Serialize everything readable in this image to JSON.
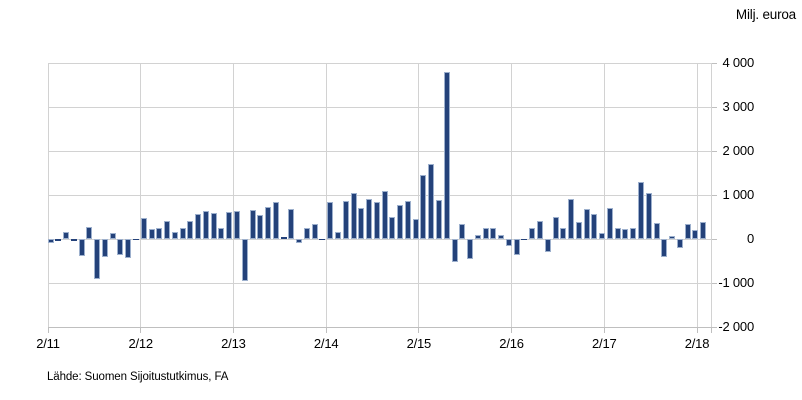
{
  "unit_label": "Milj. euroa",
  "source_note": "Lähde: Suomen Sijoitustutkimus, FA",
  "colors": {
    "bar_fill": "#24427a",
    "bar_edge": "#9db0cd",
    "gridline": "#d2d2d2",
    "axis": "#bfbfbf",
    "background": "#ffffff",
    "text": "#000000"
  },
  "chart_data": {
    "type": "bar",
    "title": "",
    "xlabel": "",
    "ylabel": "Milj. euroa",
    "ylim": [
      -2000,
      4000
    ],
    "grid": true,
    "legend": "none",
    "y_tick_labels": [
      "4 000",
      "3 000",
      "2 000",
      "1 000",
      "0",
      "-1 000",
      "-2 000"
    ],
    "y_tick_values": [
      4000,
      3000,
      2000,
      1000,
      0,
      -1000,
      -2000
    ],
    "x_tick_labels": [
      "2/11",
      "2/12",
      "2/13",
      "2/14",
      "2/15",
      "2/16",
      "2/17",
      "2/18"
    ],
    "categories": [
      "2011-02",
      "2011-03",
      "2011-04",
      "2011-05",
      "2011-06",
      "2011-07",
      "2011-08",
      "2011-09",
      "2011-10",
      "2011-11",
      "2011-12",
      "2012-01",
      "2012-02",
      "2012-03",
      "2012-04",
      "2012-05",
      "2012-06",
      "2012-07",
      "2012-08",
      "2012-09",
      "2012-10",
      "2012-11",
      "2012-12",
      "2013-01",
      "2013-02",
      "2013-03",
      "2013-04",
      "2013-05",
      "2013-06",
      "2013-07",
      "2013-08",
      "2013-09",
      "2013-10",
      "2013-11",
      "2013-12",
      "2014-01",
      "2014-02",
      "2014-03",
      "2014-04",
      "2014-05",
      "2014-06",
      "2014-07",
      "2014-08",
      "2014-09",
      "2014-10",
      "2014-11",
      "2014-12",
      "2015-01",
      "2015-02",
      "2015-03",
      "2015-04",
      "2015-05",
      "2015-06",
      "2015-07",
      "2015-08",
      "2015-09",
      "2015-10",
      "2015-11",
      "2015-12",
      "2016-01",
      "2016-02",
      "2016-03",
      "2016-04",
      "2016-05",
      "2016-06",
      "2016-07",
      "2016-08",
      "2016-09",
      "2016-10",
      "2016-11",
      "2016-12",
      "2017-01",
      "2017-02",
      "2017-03",
      "2017-04",
      "2017-05",
      "2017-06",
      "2017-07",
      "2017-08",
      "2017-09",
      "2017-10",
      "2017-11",
      "2017-12",
      "2018-01",
      "2018-02"
    ],
    "values": [
      -80,
      -40,
      150,
      -50,
      -380,
      270,
      -910,
      -400,
      130,
      -360,
      -430,
      -20,
      480,
      230,
      260,
      410,
      150,
      240,
      420,
      570,
      640,
      580,
      250,
      610,
      640,
      -950,
      660,
      540,
      730,
      850,
      50,
      690,
      -80,
      260,
      340,
      -30,
      830,
      170,
      870,
      1040,
      700,
      900,
      830,
      1080,
      510,
      780,
      860,
      460,
      1460,
      1700,
      890,
      3800,
      -530,
      350,
      -450,
      90,
      240,
      260,
      90,
      -170,
      -360,
      -30,
      260,
      410,
      -290,
      490,
      250,
      920,
      380,
      680,
      560,
      130,
      700,
      260,
      230,
      240,
      1300,
      1040,
      360,
      -400,
      70,
      -210,
      330,
      210,
      390
    ]
  }
}
